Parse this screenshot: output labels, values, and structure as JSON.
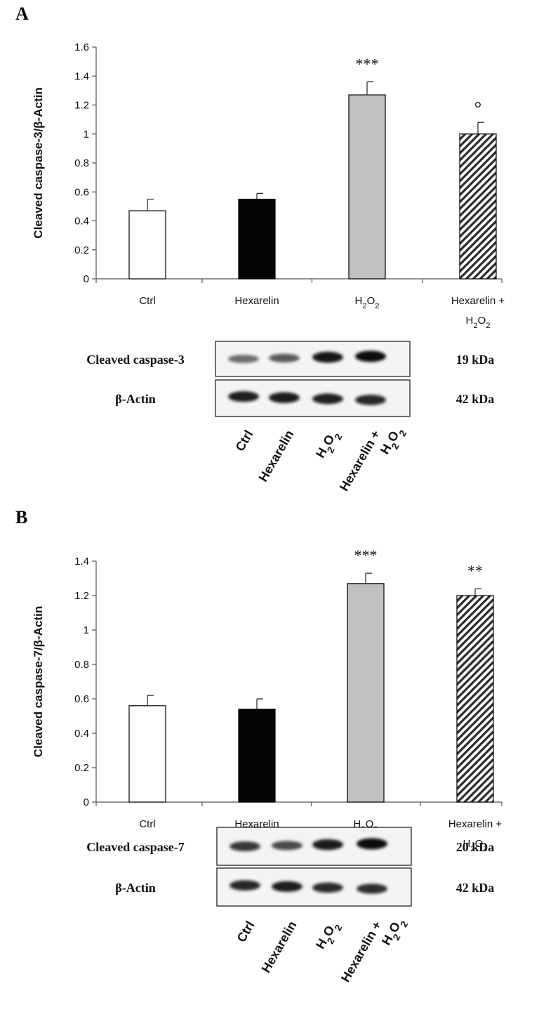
{
  "chart_data": [
    {
      "type": "bar",
      "panel_label": "A",
      "categories": [
        "Ctrl",
        "Hexarelin",
        "H2O2",
        "Hexarelin + H2O2"
      ],
      "values": [
        0.47,
        0.55,
        1.27,
        1.0
      ],
      "errors": [
        0.08,
        0.04,
        0.09,
        0.08
      ],
      "significance": [
        "",
        "",
        "***",
        "°"
      ],
      "ylabel": "Cleaved caspase-3/β-Actin",
      "ylim": [
        0,
        1.6
      ],
      "yticks": [
        "0",
        "0.2",
        "0.4",
        "0.6",
        "0.8",
        "1",
        "1.2",
        "1.4",
        "1.6"
      ],
      "bar_styles": [
        "white",
        "black",
        "gray",
        "hatched"
      ],
      "blot": {
        "rows": [
          {
            "label": "Cleaved caspase-3",
            "size": "19 kDa"
          },
          {
            "label": "β-Actin",
            "size": "42 kDa"
          }
        ],
        "lanes": [
          "Ctrl",
          "Hexarelin",
          "H2O2",
          "Hexarelin + H2O2"
        ]
      }
    },
    {
      "type": "bar",
      "panel_label": "B",
      "categories": [
        "Ctrl",
        "Hexarelin",
        "H2O2",
        "Hexarelin + H2O2"
      ],
      "values": [
        0.56,
        0.54,
        1.27,
        1.2
      ],
      "errors": [
        0.06,
        0.06,
        0.06,
        0.04
      ],
      "significance": [
        "",
        "",
        "***",
        "**"
      ],
      "ylabel": "Cleaved caspase-7/β-Actin",
      "ylim": [
        0,
        1.4
      ],
      "yticks": [
        "0",
        "0.2",
        "0.4",
        "0.6",
        "0.8",
        "1",
        "1.2",
        "1.4"
      ],
      "bar_styles": [
        "white",
        "black",
        "gray",
        "hatched"
      ],
      "blot": {
        "rows": [
          {
            "label": "Cleaved caspase-7",
            "size": "20 kDa"
          },
          {
            "label": "β-Actin",
            "size": "42 kDa"
          }
        ],
        "lanes": [
          "Ctrl",
          "Hexarelin",
          "H2O2",
          "Hexarelin + H2O2"
        ]
      }
    }
  ]
}
